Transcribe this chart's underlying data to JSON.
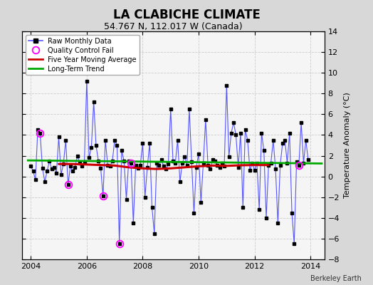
{
  "title": "LA CLABICHE CLIMATE",
  "subtitle": "54.767 N, 112.017 W (Canada)",
  "ylabel": "Temperature Anomaly (°C)",
  "attribution": "Berkeley Earth",
  "xlim": [
    2003.7,
    2014.5
  ],
  "ylim": [
    -8,
    14
  ],
  "yticks": [
    -8,
    -6,
    -4,
    -2,
    0,
    2,
    4,
    6,
    8,
    10,
    12,
    14
  ],
  "xticks": [
    2004,
    2006,
    2008,
    2010,
    2012,
    2014
  ],
  "fig_bg_color": "#d8d8d8",
  "plot_bg_color": "#f5f5f5",
  "raw_color": "#5555ff",
  "ma_color": "#cc0000",
  "trend_color": "#00aa00",
  "qc_color": "#ff00ff",
  "raw_data": [
    1.0,
    0.5,
    -0.3,
    4.5,
    4.2,
    0.8,
    -0.5,
    0.5,
    1.5,
    0.7,
    0.9,
    0.3,
    3.8,
    0.2,
    1.2,
    3.5,
    -0.8,
    1.0,
    0.5,
    0.9,
    2.0,
    1.3,
    1.0,
    1.4,
    9.2,
    1.8,
    2.8,
    7.2,
    3.0,
    1.5,
    0.8,
    -1.9,
    3.5,
    1.1,
    1.0,
    1.5,
    3.5,
    3.0,
    -6.5,
    2.5,
    1.5,
    -2.2,
    1.5,
    1.3,
    -4.5,
    1.1,
    0.8,
    1.1,
    3.2,
    -2.0,
    0.9,
    3.2,
    -3.0,
    -5.5,
    1.3,
    1.1,
    1.6,
    1.0,
    0.7,
    1.2,
    6.5,
    1.5,
    1.3,
    3.5,
    -0.5,
    1.3,
    1.9,
    1.1,
    6.5,
    1.4,
    -3.5,
    0.9,
    2.2,
    -2.5,
    1.3,
    5.5,
    1.1,
    0.7,
    1.6,
    1.5,
    1.1,
    0.9,
    1.3,
    1.0,
    8.8,
    1.9,
    4.2,
    5.2,
    4.0,
    0.9,
    4.2,
    -3.0,
    4.5,
    3.5,
    0.6,
    1.3,
    0.6,
    1.3,
    -3.2,
    4.2,
    2.5,
    -4.0,
    1.1,
    1.3,
    3.5,
    0.7,
    -4.5,
    1.1,
    3.2,
    3.5,
    1.3,
    4.2,
    -3.5,
    -6.5,
    1.4,
    1.1,
    5.2,
    1.3,
    3.5,
    1.6
  ],
  "qc_fail_indices": [
    4,
    16,
    31,
    38,
    43,
    115
  ],
  "ma_x": [
    2005.0,
    2005.5,
    2006.0,
    2006.5,
    2007.0,
    2007.5,
    2008.0,
    2008.5,
    2009.0,
    2009.5,
    2010.0,
    2010.5,
    2011.0,
    2011.5,
    2012.0,
    2012.5
  ],
  "ma_y": [
    1.2,
    1.2,
    1.15,
    1.1,
    1.05,
    0.88,
    0.78,
    0.72,
    0.78,
    0.88,
    0.98,
    1.05,
    1.02,
    1.08,
    1.1,
    1.1
  ],
  "trend_x": [
    2003.9,
    2014.4
  ],
  "trend_y": [
    1.55,
    1.25
  ],
  "grid_color": "#cccccc",
  "title_fontsize": 12,
  "subtitle_fontsize": 9,
  "tick_labelsize": 8,
  "ylabel_fontsize": 8
}
